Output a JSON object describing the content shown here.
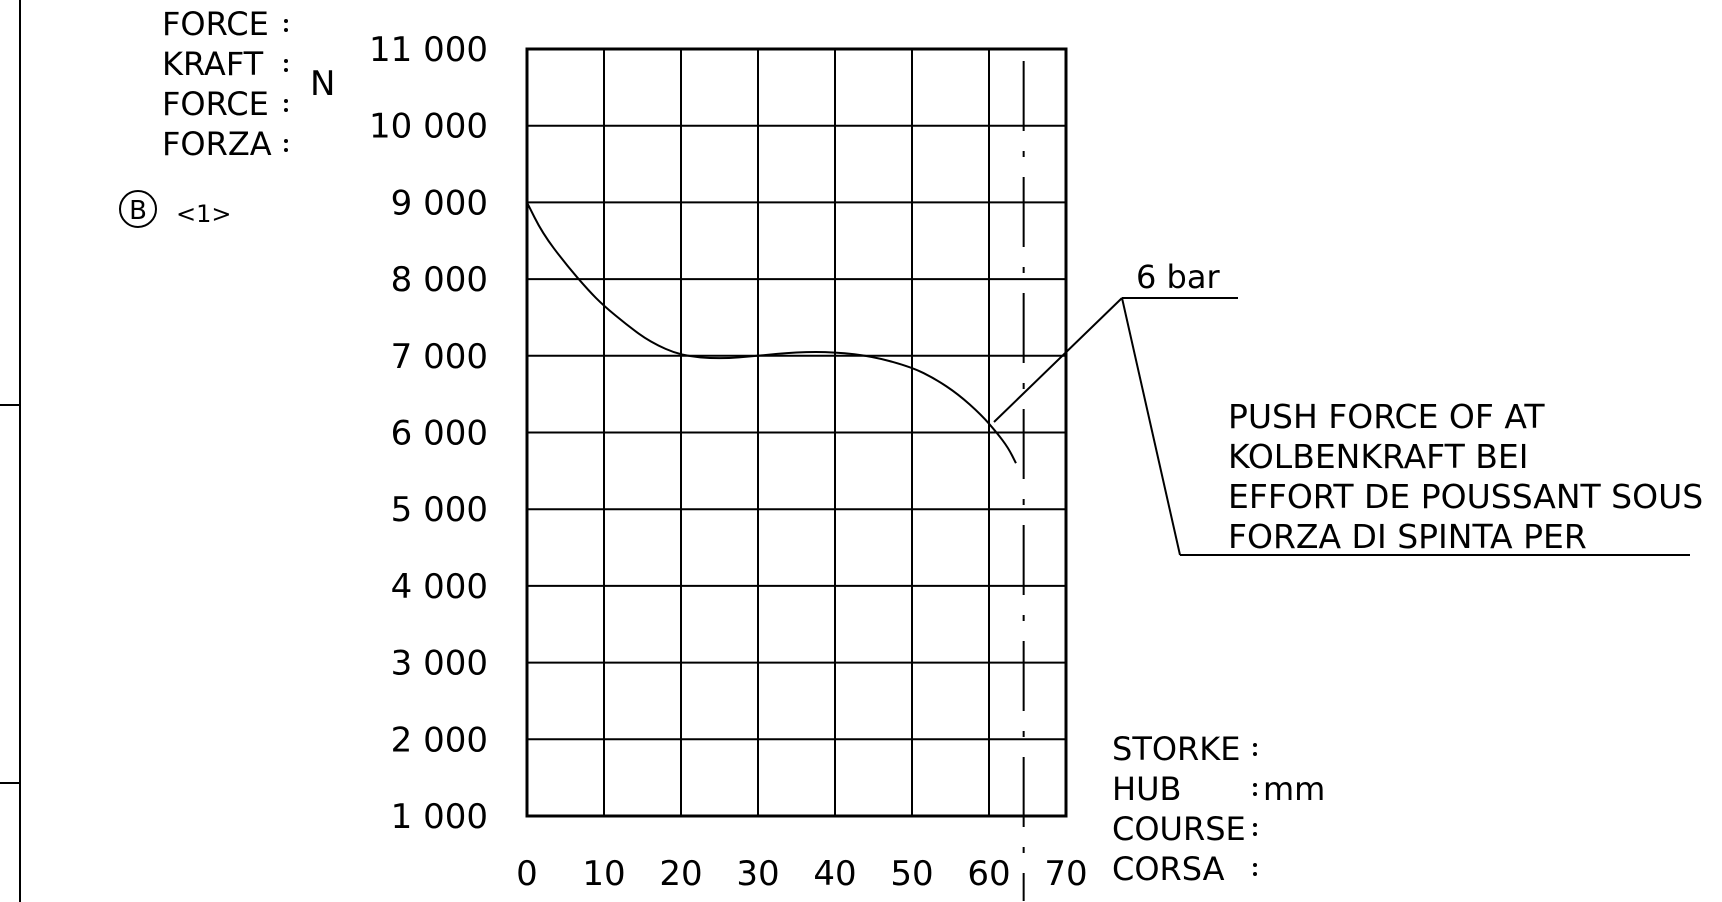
{
  "force_labels": [
    "FORCE",
    "KRAFT",
    "FORCE",
    "FORZA"
  ],
  "force_unit": "N",
  "callout": {
    "circle_letter": "B",
    "ref": "<1>"
  },
  "stroke_labels": [
    "STORKE",
    "HUB",
    "COURSE",
    "CORSA"
  ],
  "stroke_unit": "mm",
  "annotation_lines": [
    "PUSH FORCE OF AT",
    "KOLBENKRAFT BEI",
    "EFFORT DE POUSSANT SOUS",
    "FORZA DI SPINTA PER"
  ],
  "pressure_label": "6 bar",
  "chart_data": {
    "type": "line",
    "title": "",
    "xlabel": "STORKE / HUB / COURSE / CORSA : mm",
    "ylabel": "FORCE / KRAFT / FORCE / FORZA : N",
    "xlim": [
      0,
      70
    ],
    "ylim": [
      1000,
      11000
    ],
    "grid": true,
    "x_ticks": [
      0,
      10,
      20,
      30,
      40,
      50,
      60,
      70
    ],
    "x_tick_labels": [
      "0",
      "10",
      "20",
      "30",
      "40",
      "50",
      "60",
      "70"
    ],
    "y_ticks": [
      1000,
      2000,
      3000,
      4000,
      5000,
      6000,
      7000,
      8000,
      9000,
      10000,
      11000
    ],
    "y_tick_labels": [
      "1 000",
      "2 000",
      "3 000",
      "4 000",
      "5 000",
      "6 000",
      "7 000",
      "8 000",
      "9 000",
      "10 000",
      "11 000"
    ],
    "stroke_end_mm": 64.5,
    "series": [
      {
        "name": "6 bar",
        "x": [
          0,
          2,
          5,
          8,
          10,
          13,
          16,
          20,
          25,
          30,
          35,
          40,
          45,
          50,
          53,
          56,
          59,
          61,
          62.5,
          63.5
        ],
        "y": [
          9000,
          8600,
          8200,
          7850,
          7650,
          7400,
          7180,
          7000,
          6960,
          7000,
          7050,
          7050,
          6990,
          6850,
          6700,
          6500,
          6230,
          6000,
          5800,
          5600
        ]
      }
    ]
  }
}
